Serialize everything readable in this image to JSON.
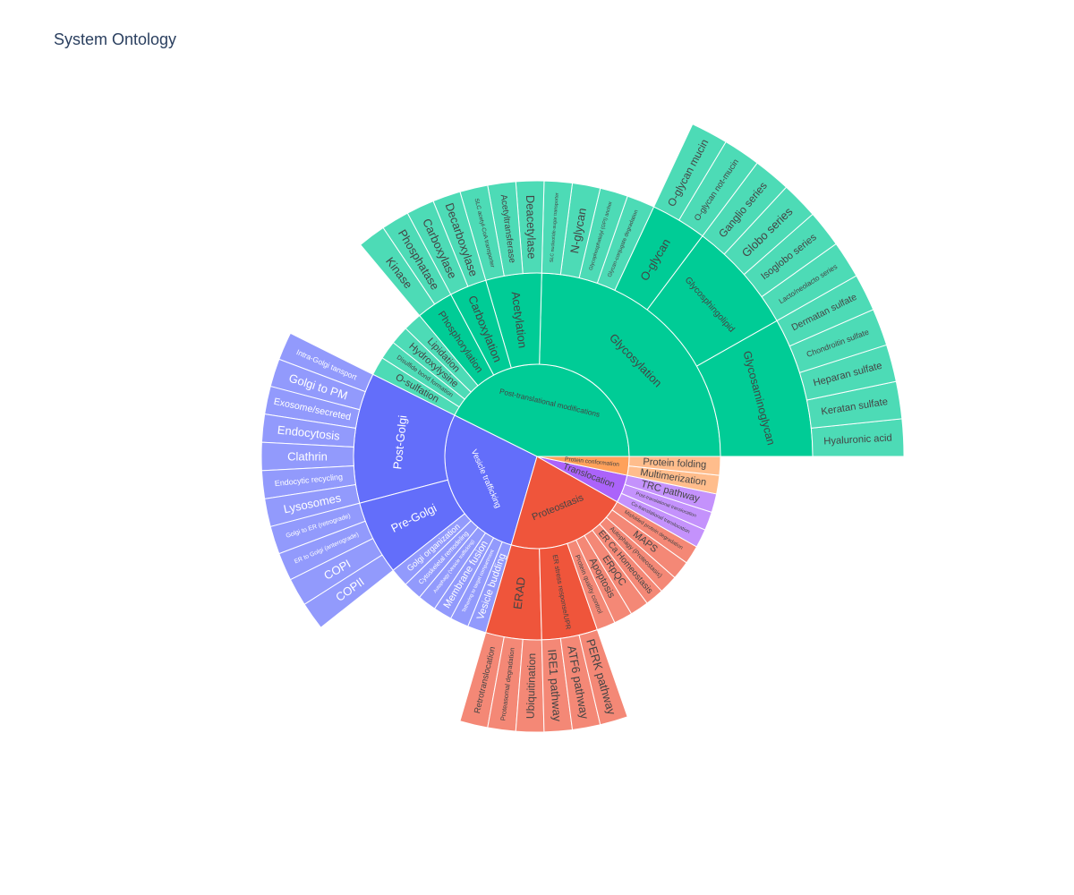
{
  "chart_data": {
    "type": "sunburst",
    "title": "System Ontology",
    "children": [
      {
        "name": "Post-translational modifications",
        "color": "#00cc96",
        "children": [
          {
            "name": "Glycosylation",
            "children": [
              {
                "name": "Glycosaminoglycan",
                "children": [
                  {
                    "name": "Hyaluronic acid",
                    "value": 1
                  },
                  {
                    "name": "Keratan sulfate",
                    "value": 1
                  },
                  {
                    "name": "Heparan sulfate",
                    "value": 1
                  },
                  {
                    "name": "Chondroitin sulfate",
                    "value": 1
                  },
                  {
                    "name": "Dermatan sulfate",
                    "value": 1
                  }
                ]
              },
              {
                "name": "Glycosphingolipid",
                "children": [
                  {
                    "name": "Lacto/neolacto series",
                    "value": 1
                  },
                  {
                    "name": "Isoglobo series",
                    "value": 1
                  },
                  {
                    "name": "Globo series",
                    "value": 1
                  },
                  {
                    "name": "Ganglio series",
                    "value": 1
                  }
                ]
              },
              {
                "name": "O-glycan",
                "children": [
                  {
                    "name": "O-glycan not-mucin",
                    "value": 1
                  },
                  {
                    "name": "O-glycan mucin",
                    "value": 1
                  }
                ]
              },
              {
                "name": "Glycan-conjugate degradation",
                "value": 1
              },
              {
                "name": "Glycophosphatidyl (GPI) anchor",
                "value": 1
              },
              {
                "name": "N-glycan",
                "value": 1
              },
              {
                "name": "SLC nucleotide-sugar transporter",
                "value": 1
              }
            ]
          },
          {
            "name": "Acetylation",
            "children": [
              {
                "name": "Deacetylase",
                "value": 1
              },
              {
                "name": "Acetyltransferase",
                "value": 1
              },
              {
                "name": "SLC acetyl-CoA transporter",
                "value": 1
              }
            ]
          },
          {
            "name": "Carboxylation",
            "children": [
              {
                "name": "Decarboxylase",
                "value": 1
              },
              {
                "name": "Carboxylase",
                "value": 1
              }
            ]
          },
          {
            "name": "Phosphorylation",
            "children": [
              {
                "name": "Phosphatase",
                "value": 1
              },
              {
                "name": "Kinase",
                "value": 1
              }
            ]
          },
          {
            "name": "Lipidation",
            "value": 1
          },
          {
            "name": "Hydroxylysine",
            "value": 1
          },
          {
            "name": "Disulfide bond formation",
            "value": 1
          },
          {
            "name": "O-sulfation",
            "value": 1
          }
        ]
      },
      {
        "name": "Vesicle trafficking",
        "color": "#636efa",
        "children": [
          {
            "name": "Post-Golgi",
            "children": [
              {
                "name": "Intra-Golgi tansport",
                "value": 1
              },
              {
                "name": "Golgi to PM",
                "value": 1
              },
              {
                "name": "Exosome/secreted",
                "value": 1
              },
              {
                "name": "Endocytosis",
                "value": 1
              },
              {
                "name": "Clathrin",
                "value": 1
              },
              {
                "name": "Endocytic recycling",
                "value": 1
              },
              {
                "name": "Lysosomes",
                "value": 1
              }
            ]
          },
          {
            "name": "Pre-Golgi",
            "children": [
              {
                "name": "Golgi to ER (retrograde)",
                "value": 1
              },
              {
                "name": "ER to Golgi (anterograde)",
                "value": 1
              },
              {
                "name": "COPI",
                "value": 1
              },
              {
                "name": "COPII",
                "value": 1
              }
            ]
          },
          {
            "name": "Golgi organization",
            "value": 1
          },
          {
            "name": "Cytoskeletal remodeling",
            "value": 1
          },
          {
            "name": "Autophagy (Vesicle trafficking)",
            "value": 1
          },
          {
            "name": "Membrane fusion",
            "value": 1
          },
          {
            "name": "Tethering to target compartment",
            "value": 1
          },
          {
            "name": "Vesicle budding",
            "value": 1
          }
        ]
      },
      {
        "name": "Proteostasis",
        "color": "#ef553b",
        "children": [
          {
            "name": "ERAD",
            "children": [
              {
                "name": "Retrotranslocation",
                "value": 1
              },
              {
                "name": "Proteasomal degradation",
                "value": 1
              },
              {
                "name": "Ubiquitination",
                "value": 1
              }
            ]
          },
          {
            "name": "ER stress response/UPR",
            "children": [
              {
                "name": "IRE1 pathway",
                "value": 1
              },
              {
                "name": "ATF6 pathway",
                "value": 1
              },
              {
                "name": "PERK pathway",
                "value": 1
              }
            ]
          },
          {
            "name": "Protein quality control",
            "value": 1
          },
          {
            "name": "Apoptosis",
            "value": 1
          },
          {
            "name": "ERpQC",
            "value": 1
          },
          {
            "name": "ER Ca Homeostasis",
            "value": 1
          },
          {
            "name": "Autophagy (Proteostasis)",
            "value": 1
          },
          {
            "name": "MAPS",
            "value": 1
          },
          {
            "name": "Misfolded protein degradation",
            "value": 1
          }
        ]
      },
      {
        "name": "Translocation",
        "color": "#ab63fa",
        "children": [
          {
            "name": "Co-translational translocation",
            "value": 1
          },
          {
            "name": "Post-translational translocation",
            "value": 1
          },
          {
            "name": "TRC pathway",
            "value": 1
          }
        ]
      },
      {
        "name": "Protein conformation",
        "color": "#ffa15a",
        "children": [
          {
            "name": "Multimerization",
            "value": 1
          },
          {
            "name": "Protein folding",
            "value": 1
          }
        ]
      }
    ]
  }
}
